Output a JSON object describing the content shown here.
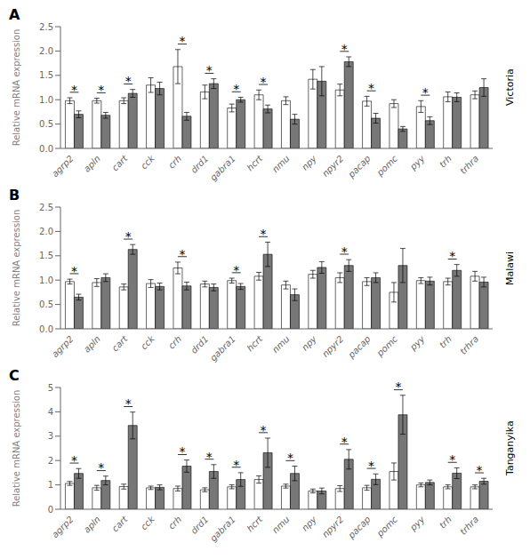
{
  "chart_data": [
    {
      "type": "bar",
      "title": "A",
      "subtitle": "Victoria",
      "ylabel": "Relative mRNA expression",
      "categories": [
        "agrp2",
        "apln",
        "cart",
        "cck",
        "crh",
        "drd1",
        "gabra1",
        "hcrt",
        "nmu",
        "npy",
        "npyr2",
        "pacap",
        "pomc",
        "pyy",
        "trh",
        "trhra"
      ],
      "series": [
        {
          "color": "#FFFFFF",
          "values": [
            0.98,
            0.98,
            0.98,
            1.3,
            1.68,
            1.16,
            0.83,
            1.1,
            0.98,
            1.42,
            1.2,
            0.97,
            0.92,
            0.86,
            1.06,
            1.1
          ],
          "errors": [
            0.06,
            0.05,
            0.06,
            0.15,
            0.35,
            0.14,
            0.08,
            0.1,
            0.08,
            0.2,
            0.12,
            0.1,
            0.08,
            0.12,
            0.1,
            0.08
          ]
        },
        {
          "color": "#777777",
          "values": [
            0.7,
            0.68,
            1.13,
            1.23,
            0.66,
            1.33,
            1.0,
            0.81,
            0.6,
            1.38,
            1.78,
            0.62,
            0.4,
            0.57,
            1.05,
            1.25
          ],
          "errors": [
            0.07,
            0.06,
            0.08,
            0.13,
            0.08,
            0.1,
            0.05,
            0.08,
            0.1,
            0.3,
            0.1,
            0.1,
            0.05,
            0.08,
            0.09,
            0.18
          ]
        }
      ],
      "ylim": [
        0,
        2.5
      ],
      "yticks": [
        {
          "value": 0,
          "label": "0.0"
        },
        0.5,
        {
          "value": 1,
          "label": "1.0"
        },
        1.5,
        {
          "value": 2,
          "label": "2.0"
        },
        2.5
      ],
      "annotations": [
        {
          "text": "*",
          "category": "agrp2"
        },
        {
          "text": "*",
          "category": "apln"
        },
        {
          "text": "*",
          "category": "cart"
        },
        {
          "text": "*",
          "category": "crh"
        },
        {
          "text": "*",
          "category": "drd1"
        },
        {
          "text": "*",
          "category": "gabra1"
        },
        {
          "text": "*",
          "category": "hcrt"
        },
        {
          "text": "*",
          "category": "npyr2"
        },
        {
          "text": "*",
          "category": "pacap"
        },
        {
          "text": "*",
          "category": "pyy"
        }
      ]
    },
    {
      "type": "bar",
      "title": "B",
      "subtitle": "Malawi",
      "ylabel": "Relative mRNA expression",
      "categories": [
        "agrp2",
        "apln",
        "cart",
        "cck",
        "crh",
        "drd1",
        "gabra1",
        "hcrt",
        "nmu",
        "npy",
        "npyr2",
        "pacap",
        "pomc",
        "pyy",
        "trh",
        "trhra"
      ],
      "series": [
        {
          "color": "#FFFFFF",
          "values": [
            0.97,
            0.95,
            0.86,
            0.93,
            1.25,
            0.92,
            0.99,
            1.08,
            0.9,
            1.12,
            1.05,
            0.97,
            0.75,
            0.99,
            0.97,
            1.08
          ],
          "errors": [
            0.05,
            0.08,
            0.06,
            0.08,
            0.12,
            0.06,
            0.05,
            0.08,
            0.08,
            0.08,
            0.1,
            0.08,
            0.2,
            0.06,
            0.07,
            0.1
          ]
        },
        {
          "color": "#777777",
          "values": [
            0.65,
            1.05,
            1.63,
            0.87,
            0.88,
            0.85,
            0.87,
            1.53,
            0.7,
            1.26,
            1.3,
            1.05,
            1.3,
            0.98,
            1.2,
            0.96
          ],
          "errors": [
            0.06,
            0.08,
            0.1,
            0.07,
            0.08,
            0.07,
            0.06,
            0.25,
            0.12,
            0.12,
            0.12,
            0.1,
            0.35,
            0.08,
            0.12,
            0.1
          ]
        }
      ],
      "ylim": [
        0,
        2.5
      ],
      "yticks": [
        {
          "value": 0,
          "label": "0.0"
        },
        0.5,
        {
          "value": 1,
          "label": "1.0"
        },
        1.5,
        {
          "value": 2,
          "label": "2.0"
        },
        2.5
      ],
      "annotations": [
        {
          "text": "*",
          "category": "agrp2"
        },
        {
          "text": "*",
          "category": "cart"
        },
        {
          "text": "*",
          "category": "crh"
        },
        {
          "text": "*",
          "category": "gabra1"
        },
        {
          "text": "*",
          "category": "hcrt"
        },
        {
          "text": "*",
          "category": "npyr2"
        },
        {
          "text": "*",
          "category": "trh"
        }
      ]
    },
    {
      "type": "bar",
      "title": "C",
      "subtitle": "Tanganyika",
      "ylabel": "Relative mRNA expression",
      "categories": [
        "agrp2",
        "apln",
        "cart",
        "cck",
        "crh",
        "drd1",
        "gabra1",
        "hcrt",
        "nmu",
        "npy",
        "npyr2",
        "pacap",
        "pomc",
        "pyy",
        "trh",
        "trhra"
      ],
      "series": [
        {
          "color": "#FFFFFF",
          "values": [
            1.06,
            0.88,
            0.93,
            0.88,
            0.85,
            0.8,
            0.92,
            1.22,
            0.95,
            0.75,
            0.85,
            0.88,
            1.55,
            1.0,
            0.92,
            0.92
          ],
          "errors": [
            0.08,
            0.1,
            0.1,
            0.07,
            0.1,
            0.08,
            0.08,
            0.15,
            0.08,
            0.08,
            0.12,
            0.1,
            0.35,
            0.08,
            0.08,
            0.08
          ]
        },
        {
          "color": "#777777",
          "values": [
            1.47,
            1.18,
            3.44,
            0.9,
            1.77,
            1.55,
            1.22,
            2.32,
            1.47,
            0.75,
            2.05,
            1.23,
            3.88,
            1.1,
            1.48,
            1.15
          ],
          "errors": [
            0.2,
            0.18,
            0.55,
            0.1,
            0.25,
            0.28,
            0.28,
            0.6,
            0.3,
            0.12,
            0.4,
            0.22,
            0.8,
            0.1,
            0.22,
            0.12
          ]
        }
      ],
      "ylim": [
        0,
        5
      ],
      "yticks": [
        0,
        1,
        2,
        3,
        4,
        5
      ],
      "annotations": [
        {
          "text": "*",
          "category": "agrp2"
        },
        {
          "text": "*",
          "category": "apln"
        },
        {
          "text": "*",
          "category": "cart"
        },
        {
          "text": "*",
          "category": "crh"
        },
        {
          "text": "*",
          "category": "drd1"
        },
        {
          "text": "*",
          "category": "gabra1"
        },
        {
          "text": "*",
          "category": "hcrt"
        },
        {
          "text": "*",
          "category": "nmu"
        },
        {
          "text": "*",
          "category": "npyr2"
        },
        {
          "text": "*",
          "category": "pacap"
        },
        {
          "text": "*",
          "category": "pomc"
        },
        {
          "text": "*",
          "category": "trh"
        },
        {
          "text": "*",
          "category": "trhra"
        }
      ]
    }
  ]
}
